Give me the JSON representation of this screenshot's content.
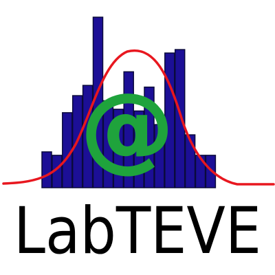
{
  "logo": {
    "wordmark": "LabTEVE",
    "symbol_text": "@",
    "colors": {
      "bars": "#1c0f96",
      "bar_outline": "#0a0a3a",
      "curve": "#e8171f",
      "symbol": "#1fa33c",
      "wordmark": "#000000",
      "background": "#ffffff"
    }
  },
  "histogram": {
    "bar_heights_relative": [
      0.21,
      0.19,
      0.44,
      0.54,
      0.6,
      1.0,
      0.51,
      0.46,
      0.68,
      0.45,
      0.59,
      0.37,
      0.79,
      0.81,
      0.31,
      0.19,
      0.19
    ]
  }
}
